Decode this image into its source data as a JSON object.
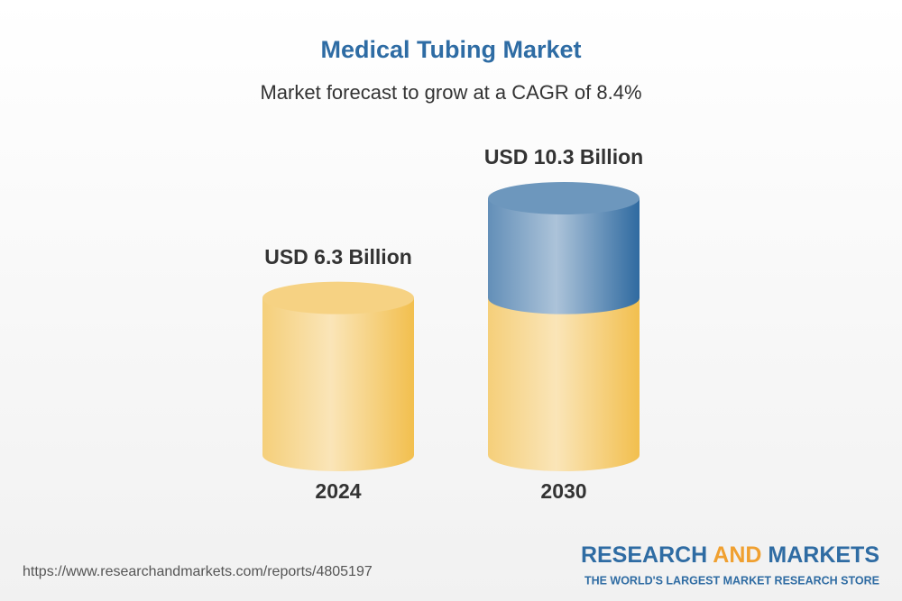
{
  "chart_data": {
    "type": "cylinder",
    "title": "Medical Tubing Market",
    "subtitle": "Market forecast to grow at a CAGR of 8.4%",
    "categories": [
      "2024",
      "2030"
    ],
    "values": [
      6.3,
      10.3
    ],
    "value_labels": [
      "USD 6.3 Billion",
      "USD 10.3 Billion"
    ],
    "colors": [
      "#f2bf4e",
      "#2f6aa0"
    ]
  },
  "footer": {
    "url": "https://www.researchandmarkets.com/reports/4805197",
    "brand": [
      "RESEARCH",
      "AND",
      "MARKETS"
    ],
    "tagline": "THE WORLD'S LARGEST MARKET RESEARCH STORE"
  }
}
